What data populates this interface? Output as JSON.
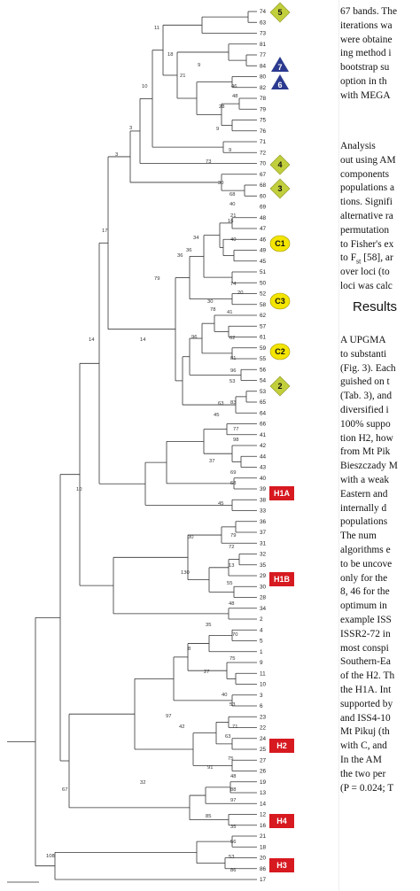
{
  "figure": {
    "leaves": [
      "74",
      "63",
      "73",
      "81",
      "77",
      "84",
      "80",
      "82",
      "78",
      "79",
      "75",
      "76",
      "71",
      "72",
      "70",
      "67",
      "68",
      "60",
      "69",
      "48",
      "47",
      "46",
      "49",
      "45",
      "51",
      "50",
      "52",
      "58",
      "62",
      "57",
      "61",
      "59",
      "55",
      "56",
      "54",
      "53",
      "65",
      "64",
      "66",
      "41",
      "42",
      "44",
      "43",
      "40",
      "39",
      "38",
      "33",
      "36",
      "37",
      "31",
      "32",
      "35",
      "29",
      "30",
      "28",
      "34",
      "2",
      "4",
      "5",
      "1",
      "9",
      "11",
      "10",
      "3",
      "6",
      "23",
      "22",
      "24",
      "25",
      "27",
      "26",
      "19",
      "13",
      "14",
      "12",
      "16",
      "21",
      "18",
      "20",
      "86",
      "17"
    ],
    "branch_labels": [
      {
        "text": "11"
      },
      {
        "text": "18"
      },
      {
        "text": "10"
      },
      {
        "text": "9"
      },
      {
        "text": "21"
      },
      {
        "text": "46"
      },
      {
        "text": "48"
      },
      {
        "text": "28"
      },
      {
        "text": "9"
      },
      {
        "text": "9"
      },
      {
        "text": "3"
      },
      {
        "text": "73"
      },
      {
        "text": "30"
      },
      {
        "text": "3"
      },
      {
        "text": "68"
      },
      {
        "text": "21"
      },
      {
        "text": "17"
      },
      {
        "text": "40"
      },
      {
        "text": "16"
      },
      {
        "text": "34"
      },
      {
        "text": "36"
      },
      {
        "text": "36"
      },
      {
        "text": "40"
      },
      {
        "text": "79"
      },
      {
        "text": "30"
      },
      {
        "text": "20"
      },
      {
        "text": "74"
      },
      {
        "text": "41"
      },
      {
        "text": "78"
      },
      {
        "text": "96"
      },
      {
        "text": "14"
      },
      {
        "text": "62"
      },
      {
        "text": "81"
      },
      {
        "text": "96"
      },
      {
        "text": "53"
      },
      {
        "text": "63"
      },
      {
        "text": "14"
      },
      {
        "text": "83"
      },
      {
        "text": "45"
      },
      {
        "text": "77"
      },
      {
        "text": "98"
      },
      {
        "text": "37"
      },
      {
        "text": "69"
      },
      {
        "text": "10"
      },
      {
        "text": "68"
      },
      {
        "text": "45"
      },
      {
        "text": "30"
      },
      {
        "text": "79"
      },
      {
        "text": "72"
      },
      {
        "text": "13"
      },
      {
        "text": "130"
      },
      {
        "text": "55"
      },
      {
        "text": "48"
      },
      {
        "text": "35"
      },
      {
        "text": "70"
      },
      {
        "text": "8"
      },
      {
        "text": "75"
      },
      {
        "text": "27"
      },
      {
        "text": "40"
      },
      {
        "text": "97"
      },
      {
        "text": "53"
      },
      {
        "text": "42"
      },
      {
        "text": "71"
      },
      {
        "text": "63"
      },
      {
        "text": "75"
      },
      {
        "text": "91"
      },
      {
        "text": "32"
      },
      {
        "text": "48"
      },
      {
        "text": "88"
      },
      {
        "text": "97"
      },
      {
        "text": "85"
      },
      {
        "text": "35"
      },
      {
        "text": "56"
      },
      {
        "text": "53"
      },
      {
        "text": "86"
      },
      {
        "text": "67"
      },
      {
        "text": "108"
      }
    ],
    "groups": [
      {
        "label": "5",
        "shape": "diamond",
        "color": "#c2cf3c"
      },
      {
        "label": "7",
        "shape": "triangle",
        "color": "#2b3a8f"
      },
      {
        "label": "6",
        "shape": "triangle",
        "color": "#2b3a8f"
      },
      {
        "label": "4",
        "shape": "diamond",
        "color": "#c2cf3c"
      },
      {
        "label": "3",
        "shape": "diamond",
        "color": "#c2cf3c"
      },
      {
        "label": "C1",
        "shape": "circle",
        "color": "#f4e500"
      },
      {
        "label": "C3",
        "shape": "circle",
        "color": "#f4e500"
      },
      {
        "label": "C2",
        "shape": "circle",
        "color": "#f4e500"
      },
      {
        "label": "2",
        "shape": "diamond",
        "color": "#c2cf3c"
      },
      {
        "label": "H1A",
        "shape": "rect",
        "color": "#d71920"
      },
      {
        "label": "H1B",
        "shape": "rect",
        "color": "#d71920"
      },
      {
        "label": "H2",
        "shape": "rect",
        "color": "#d71920"
      },
      {
        "label": "H4",
        "shape": "rect",
        "color": "#d71920"
      },
      {
        "label": "H3",
        "shape": "rect",
        "color": "#d71920"
      }
    ]
  },
  "article": {
    "lines_top": [
      "67 bands. The",
      "iterations wa",
      "were obtaine",
      "ing method i",
      "bootstrap su",
      "option in th",
      "with MEGA"
    ],
    "lines_mid": [
      "Analysis",
      "out using AM",
      "components",
      "populations a",
      "tions. Signifi",
      "alternative ra",
      "permutation",
      "to Fisher's ex",
      "to F",
      "over loci (to",
      "loci was calc"
    ],
    "heading": "Results",
    "lines_bottom": [
      "A UPGMA",
      "to substanti",
      "(Fig. 3). Each",
      "guished on t",
      "(Tab. 3), and",
      "diversified i",
      "100% suppo",
      "tion H2, how",
      "from Mt Pik",
      "Bieszczady M",
      "with a weak",
      "Eastern and",
      "internally d",
      "populations",
      "The num",
      "algorithms e",
      "to be uncove",
      "only for the",
      "8, 46 for the",
      "optimum in",
      "example ISS",
      "ISSR2-72 in",
      "most conspi",
      "Southern-Ea",
      "of the H2. Th",
      "the H1A. Int",
      "supported by",
      "and ISS4-10",
      "Mt Pikuj (th",
      "with C, and",
      "In the AM",
      "the two per",
      "(P = 0.024; T"
    ],
    "fst_suffix": "st",
    "fst_ref": " [58], ar"
  }
}
